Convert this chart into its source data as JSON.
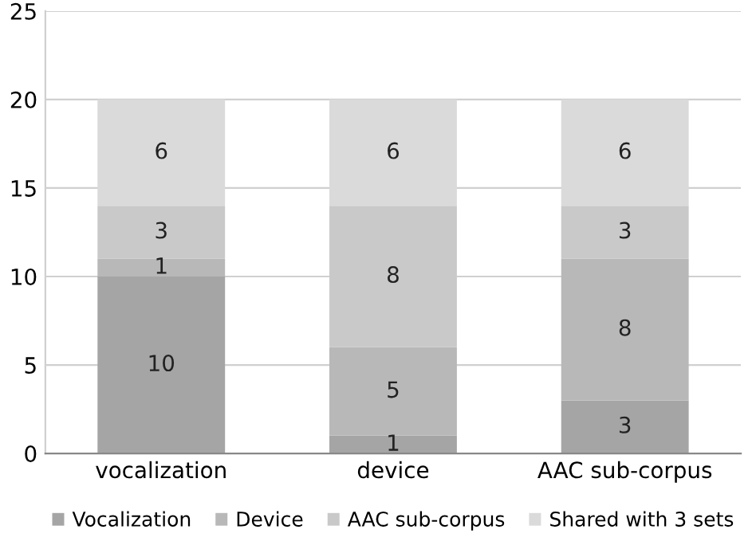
{
  "chart_data": {
    "type": "bar",
    "stacked": true,
    "categories": [
      "vocalization",
      "device",
      "AAC sub-corpus"
    ],
    "series": [
      {
        "name": "Vocalization",
        "color": "#a5a5a5",
        "values": [
          10,
          1,
          3
        ]
      },
      {
        "name": "Device",
        "color": "#b8b8b8",
        "values": [
          1,
          5,
          8
        ]
      },
      {
        "name": "AAC sub-corpus",
        "color": "#c9c9c9",
        "values": [
          3,
          8,
          3
        ]
      },
      {
        "name": "Shared with 3 sets",
        "color": "#dadada",
        "values": [
          6,
          6,
          6
        ]
      }
    ],
    "ylim": [
      0,
      25
    ],
    "yticks": [
      0,
      5,
      10,
      15,
      20,
      25
    ],
    "grid": "y",
    "legend": "bottom",
    "data_labels": true
  }
}
